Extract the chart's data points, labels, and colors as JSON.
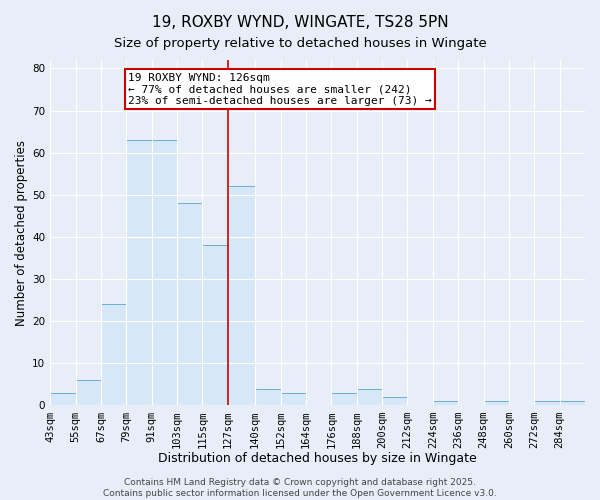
{
  "title": "19, ROXBY WYND, WINGATE, TS28 5PN",
  "subtitle": "Size of property relative to detached houses in Wingate",
  "xlabel": "Distribution of detached houses by size in Wingate",
  "ylabel": "Number of detached properties",
  "bin_labels": [
    "43sqm",
    "55sqm",
    "67sqm",
    "79sqm",
    "91sqm",
    "103sqm",
    "115sqm",
    "127sqm",
    "140sqm",
    "152sqm",
    "164sqm",
    "176sqm",
    "188sqm",
    "200sqm",
    "212sqm",
    "224sqm",
    "236sqm",
    "248sqm",
    "260sqm",
    "272sqm",
    "284sqm"
  ],
  "bin_edges": [
    43,
    55,
    67,
    79,
    91,
    103,
    115,
    127,
    140,
    152,
    164,
    176,
    188,
    200,
    212,
    224,
    236,
    248,
    260,
    272,
    284,
    296
  ],
  "counts": [
    3,
    6,
    24,
    63,
    63,
    48,
    38,
    52,
    4,
    3,
    0,
    3,
    4,
    2,
    0,
    1,
    0,
    1,
    0,
    1,
    1
  ],
  "bar_facecolor": "#d6e8f7",
  "bar_edgecolor": "#6aaed6",
  "vline_x": 127,
  "vline_color": "#cc0000",
  "annotation_title": "19 ROXBY WYND: 126sqm",
  "annotation_line2": "← 77% of detached houses are smaller (242)",
  "annotation_line3": "23% of semi-detached houses are larger (73) →",
  "annotation_box_edgecolor": "#cc0000",
  "annotation_box_facecolor": "#ffffff",
  "ylim": [
    0,
    82
  ],
  "yticks": [
    0,
    10,
    20,
    30,
    40,
    50,
    60,
    70,
    80
  ],
  "background_color": "#e8eef8",
  "plot_bg_color": "#e8eef8",
  "grid_color": "#ffffff",
  "footer_line1": "Contains HM Land Registry data © Crown copyright and database right 2025.",
  "footer_line2": "Contains public sector information licensed under the Open Government Licence v3.0.",
  "title_fontsize": 11,
  "subtitle_fontsize": 9.5,
  "xlabel_fontsize": 9,
  "ylabel_fontsize": 8.5,
  "tick_fontsize": 7.5,
  "annotation_fontsize": 8,
  "footer_fontsize": 6.5
}
